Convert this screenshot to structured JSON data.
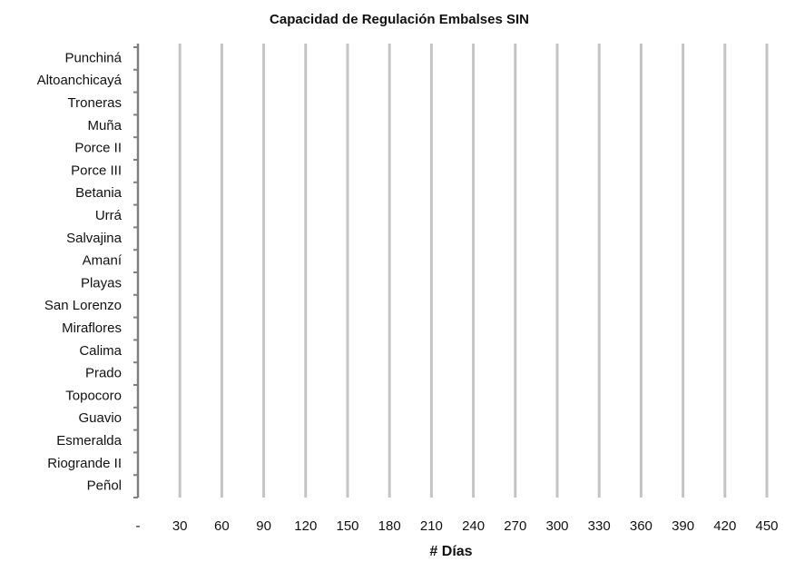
{
  "chart_data": {
    "type": "barh",
    "title": "Capacidad de Regulación Embalses SIN",
    "xlabel": "# Días",
    "categories": [
      "Punchiná",
      "Altoanchicayá",
      "Troneras",
      "Muña",
      "Porce II",
      "Porce III",
      "Betania",
      "Urrá",
      "Salvajina",
      "Amaní",
      "Playas",
      "San Lorenzo",
      "Miraflores",
      "Calima",
      "Prado",
      "Topocoro",
      "Guavio",
      "Esmeralda",
      "Riogrande II",
      "Peñol"
    ],
    "xlim": [
      0,
      450
    ],
    "xticks": [
      {
        "value": 0,
        "label": "-"
      },
      30,
      60,
      90,
      120,
      150,
      180,
      210,
      240,
      270,
      300,
      330,
      360,
      390,
      420,
      450
    ],
    "grid": true,
    "grid_color": "#c4c4c4"
  }
}
